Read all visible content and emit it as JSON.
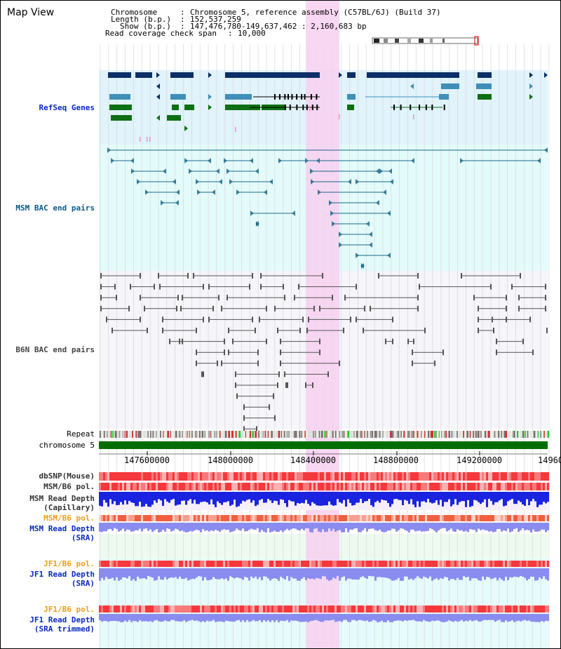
{
  "title": "Map View",
  "header": {
    "chromosome_key": "Chromosome",
    "chromosome_val": "Chromosome 5, reference assembly (C57BL/6J) (Build 37)",
    "length_key": "Length (b.p.)",
    "length_val": "152,537,259",
    "show_key": "Show (b.p.)",
    "show_val": "147,476,780-149,637,462 : 2,160,683 bp",
    "span_key": "Read coverage check span",
    "span_val": "10,000"
  },
  "tracks": {
    "refseq": "RefSeq Genes",
    "msm_bac": "MSM BAC end pairs",
    "b6n_bac": "B6N BAC end pairs",
    "repeat": "Repeat",
    "chromosome": "chromosome 5",
    "dbsnp": "dbSNP(Mouse)",
    "msm_b6_pol": "MSM/B6 pol.",
    "msm_depth_cap_1": "MSM Read Depth",
    "msm_depth_cap_2": "(Capillary)",
    "msm_b6_pol2": "MSM/B6 pol.",
    "msm_depth_sra_1": "MSM Read Depth",
    "msm_depth_sra_2": "(SRA)",
    "jf1_b6_pol": "JF1/B6 pol.",
    "jf1_depth_sra_1": "JF1 Read Depth",
    "jf1_depth_sra_2": "(SRA)",
    "jf1_b6_pol2": "JF1/B6 pol.",
    "jf1_depth_trim_1": "JF1 Read Depth",
    "jf1_depth_trim_2": "(SRA trimmed)"
  },
  "axis": {
    "ticks": [
      "147600000",
      "148000000",
      "148400000",
      "148800000",
      "149200000",
      "14960"
    ]
  },
  "colors": {
    "refseq_bg": "#e1f3fb",
    "msm_bg": "#e4fbfb",
    "b6n_bg": "#f5f5fa",
    "highlight": "#f7d0f0",
    "gene_navy": "#0b2f66",
    "gene_teal": "#3f8fb8",
    "gene_green": "#0f6f13",
    "bac_line": "#1a6a8a",
    "b6n_line": "#555555",
    "snp_red": "#f0353a",
    "depth_blue": "#1a23e0",
    "depth_lav": "#8a8cf0",
    "label_blue": "#0a28c0",
    "label_orange": "#f39c12"
  }
}
